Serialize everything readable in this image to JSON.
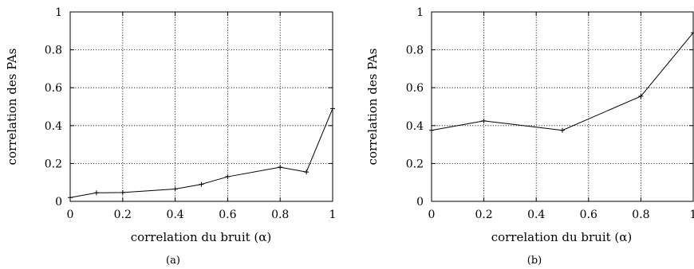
{
  "chart_data": [
    {
      "type": "line",
      "caption": "(a)",
      "xlabel": "correlation du bruit (α)",
      "ylabel": "correlation des PAs",
      "xlim": [
        0,
        1
      ],
      "ylim": [
        0,
        1
      ],
      "xticks": [
        "0",
        "0.2",
        "0.4",
        "0.6",
        "0.8",
        "1"
      ],
      "yticks": [
        "0",
        "0.2",
        "0.4",
        "0.6",
        "0.8",
        "1"
      ],
      "grid": true,
      "series": [
        {
          "x": [
            0,
            0.1,
            0.2,
            0.4,
            0.5,
            0.6,
            0.8,
            0.9,
            1.0
          ],
          "y": [
            0.02,
            0.045,
            0.047,
            0.065,
            0.09,
            0.13,
            0.18,
            0.155,
            0.49
          ]
        }
      ]
    },
    {
      "type": "line",
      "caption": "(b)",
      "xlabel": "correlation du bruit (α)",
      "ylabel": "correlation des PAs",
      "xlim": [
        0,
        1
      ],
      "ylim": [
        0,
        1
      ],
      "xticks": [
        "0",
        "0.2",
        "0.4",
        "0.6",
        "0.8",
        "1"
      ],
      "yticks": [
        "0",
        "0.2",
        "0.4",
        "0.6",
        "0.8",
        "1"
      ],
      "grid": true,
      "series": [
        {
          "x": [
            0,
            0.2,
            0.5,
            0.8,
            1.0
          ],
          "y": [
            0.375,
            0.425,
            0.375,
            0.555,
            0.89
          ]
        }
      ]
    }
  ]
}
